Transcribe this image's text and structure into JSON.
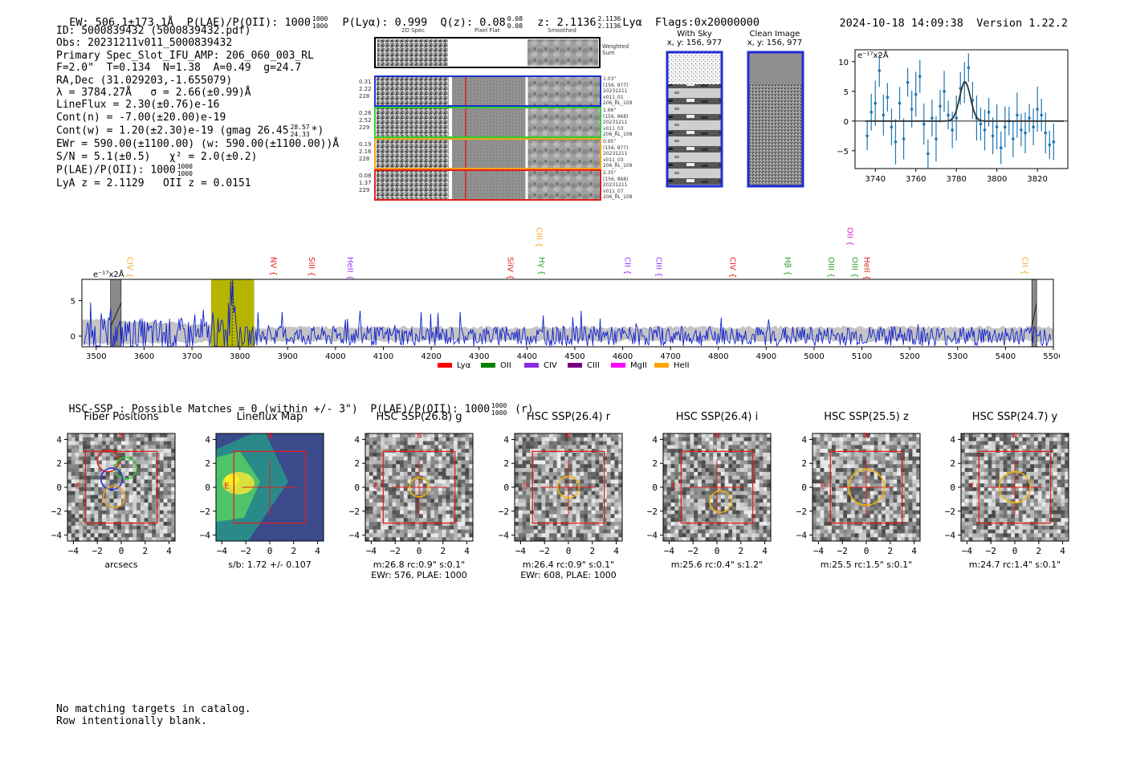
{
  "header": {
    "ew": "EW: 506.1±173.1Å",
    "plae_label": "P(LAE)/P(OII): 1000",
    "plae_hi": "1000",
    "plae_lo": "1000",
    "plya": "P(Lyα): 0.999",
    "qz": "Q(z): 0.08",
    "qz_hi": "0.08",
    "qz_lo": "0.08",
    "z": "z: 2.1136",
    "z_hi": "2.1136",
    "z_lo": "2.1136",
    "z_line": "Lyα",
    "flags": "Flags:0x20000000",
    "timestamp": "2024-10-18 14:09:38",
    "version": "Version 1.22.2"
  },
  "info": {
    "id": "ID: 5000839432 (5000839432.pdf)",
    "obs": "Obs: 20231211v011_5000839432",
    "primary": "Primary Spec_Slot_IFU_AMP: 206_060_003_RL",
    "params": "F=2.0\"  T=0.134  N=1.38  A=0.49  g=24.7",
    "radec": "RA,Dec (31.029203,-1.655079)",
    "lambda": "λ = 3784.27Å   σ = 2.66(±0.99)Å",
    "lineflux": "LineFlux = 2.30(±0.76)e-16",
    "contn": "Cont(n) = -7.00(±20.00)e-19",
    "contw": "Cont(w) = 1.20(±2.30)e-19 (gmag 26.45",
    "contw_hi": "28.57",
    "contw_lo": "24.33",
    "contw_tail": "*)",
    "ewr": "EWr = 590.00(±1100.00) (w: 590.00(±1100.00))Å",
    "sn": "S/N = 5.1(±0.5)   χ² = 2.0(±0.2)",
    "plae": "P(LAE)/P(OII): 1000",
    "plae_hi": "1000",
    "plae_lo": "1000",
    "lya": "LyA z = 2.1129   OII z = 0.0151"
  },
  "cutouts": {
    "col_2d": "2D Spec",
    "col_flat": "Pixel Flat",
    "col_smooth": "Smoothed",
    "weighted": "Weighted Sum",
    "rows": [
      {
        "w1": "0.31",
        "w2": "2.22",
        "w3": "228",
        "color": "#1f2fd0",
        "info": [
          "1.03\"",
          "(156, 977)",
          "20231211",
          "v011_01",
          "206_RL_109"
        ]
      },
      {
        "w1": "0.26",
        "w2": "2.52",
        "w3": "229",
        "color": "#2ed12e",
        "info": [
          "1.66\"",
          "(156, 968)",
          "20231211",
          "v011_03",
          "206_RL_108"
        ]
      },
      {
        "w1": "0.19",
        "w2": "2.16",
        "w3": "228",
        "color": "#f4a11a",
        "info": [
          "0.95\"",
          "(156, 977)",
          "20231211",
          "v011_03",
          "206_RL_109"
        ]
      },
      {
        "w1": "0.08",
        "w2": "1.37",
        "w3": "229",
        "color": "#e0201a",
        "info": [
          "2.35\"",
          "(156, 968)",
          "20231211",
          "v011_07",
          "206_RL_108"
        ]
      }
    ]
  },
  "sky": {
    "with_sky": "With Sky",
    "with_sky_xy": "x, y: 156, 977",
    "clean": "Clean Image",
    "clean_xy": "x, y: 156, 977"
  },
  "chart_data": [
    {
      "type": "scatter",
      "title": "",
      "ylabel": "e⁻¹⁷x2Å",
      "xlim": [
        3730,
        3835
      ],
      "ylim": [
        -8,
        12
      ],
      "xticks": [
        3740,
        3760,
        3780,
        3800,
        3820
      ],
      "yticks": [
        10,
        5,
        0,
        -5
      ],
      "x": [
        3736,
        3738,
        3740,
        3742,
        3744,
        3746,
        3748,
        3750,
        3752,
        3754,
        3756,
        3758,
        3760,
        3762,
        3764,
        3766,
        3768,
        3770,
        3772,
        3774,
        3776,
        3778,
        3780,
        3782,
        3784,
        3786,
        3788,
        3790,
        3792,
        3794,
        3796,
        3798,
        3800,
        3802,
        3804,
        3806,
        3808,
        3810,
        3812,
        3814,
        3816,
        3818,
        3820,
        3822,
        3824,
        3826,
        3828
      ],
      "y": [
        -2.5,
        1.5,
        3.0,
        8.5,
        1.0,
        4.0,
        -1.0,
        -3.5,
        3.0,
        -3.0,
        6.5,
        2.0,
        4.5,
        7.5,
        -0.5,
        -5.5,
        0.5,
        -3.0,
        2.5,
        5.0,
        1.0,
        -1.5,
        0.5,
        5.5,
        6.5,
        9.0,
        3.5,
        0.5,
        -0.5,
        -1.5,
        1.5,
        -2.5,
        -1.0,
        -4.5,
        -1.0,
        0.0,
        -3.0,
        1.0,
        -1.5,
        -2.0,
        0.5,
        -1.0,
        2.0,
        1.0,
        -2.0,
        -4.0,
        -3.5
      ],
      "fit": {
        "center": 3784.27,
        "sigma": 2.66,
        "amplitude": 6.6
      }
    },
    {
      "type": "line",
      "ylabel": "e⁻¹⁷x2Å",
      "xlim": [
        3470,
        5500
      ],
      "ylim": [
        -1.5,
        8
      ],
      "xticks": [
        3500,
        3600,
        3700,
        3800,
        3900,
        4000,
        4100,
        4200,
        4300,
        4400,
        4500,
        4600,
        4700,
        4800,
        4900,
        5000,
        5100,
        5200,
        5300,
        5400,
        5500
      ],
      "yticks": [
        5,
        0
      ],
      "highlight_range": [
        3740,
        3830
      ],
      "masked_ranges": [
        [
          3530,
          3552
        ],
        [
          5455,
          5465
        ]
      ],
      "emission_lines": [
        {
          "label": "CIV",
          "x": 3560,
          "color": "#f5a623",
          "row": 1
        },
        {
          "label": "NV",
          "x": 3860,
          "color": "#e0201a",
          "row": 1
        },
        {
          "label": "SiII",
          "x": 3940,
          "color": "#e0201a",
          "row": 1
        },
        {
          "label": "HeII",
          "x": 4020,
          "color": "#9b30ff",
          "row": 1
        },
        {
          "label": "SiIV",
          "x": 4355,
          "color": "#e0201a",
          "row": 1
        },
        {
          "label": "CIII",
          "x": 4415,
          "color": "#f5a623",
          "row": 0
        },
        {
          "label": "Hγ",
          "x": 4420,
          "color": "#2a9d2a",
          "row": 1
        },
        {
          "label": "CII",
          "x": 4600,
          "color": "#9b30ff",
          "row": 1
        },
        {
          "label": "CIII",
          "x": 4665,
          "color": "#9b30ff",
          "row": 1
        },
        {
          "label": "CIV",
          "x": 4820,
          "color": "#e0201a",
          "row": 1
        },
        {
          "label": "Hβ",
          "x": 4935,
          "color": "#2a9d2a",
          "row": 1
        },
        {
          "label": "OII",
          "x": 5065,
          "color": "#e020e0",
          "row": 0
        },
        {
          "label": "OIII",
          "x": 5025,
          "color": "#2a9d2a",
          "row": 1
        },
        {
          "label": "OIII",
          "x": 5075,
          "color": "#2a9d2a",
          "row": 1
        },
        {
          "label": "HeII",
          "x": 5100,
          "color": "#e0201a",
          "row": 1
        },
        {
          "label": "CII",
          "x": 5430,
          "color": "#f5a623",
          "row": 1
        }
      ],
      "legend": [
        {
          "label": "Lyα",
          "color": "#ff0000"
        },
        {
          "label": "OII",
          "color": "#008000"
        },
        {
          "label": "CIV",
          "color": "#8a2be2"
        },
        {
          "label": "CIII",
          "color": "#7b0080"
        },
        {
          "label": "MgII",
          "color": "#ff00ff"
        },
        {
          "label": "HeII",
          "color": "#ffa500"
        }
      ]
    }
  ],
  "hsc": {
    "summary": "HSC-SSP : Possible Matches = 0 (within +/- 3\")  P(LAE)/P(OII): 1000",
    "summary_hi": "1000",
    "summary_lo": "1000",
    "summary_tail": "(r)",
    "panels": [
      {
        "title": "Fiber Positions",
        "foot1": "arcsecs",
        "foot2": ""
      },
      {
        "title": "Lineflux Map",
        "foot1": "s/b: 1.72 +/- 0.107",
        "foot2": ""
      },
      {
        "title": "HSC SSP(26.8) g",
        "foot1": "m:26.8 rc:0.9\"  s:0.1\"",
        "foot2": "EWr: 576, PLAE: 1000"
      },
      {
        "title": "HSC SSP(26.4) r",
        "foot1": "m:26.4 rc:0.9\"  s:0.1\"",
        "foot2": "EWr: 608, PLAE: 1000"
      },
      {
        "title": "HSC SSP(26.4) i",
        "foot1": "m:25.6  rc:0.4\"  s:1.2\"",
        "foot2": ""
      },
      {
        "title": "HSC SSP(25.5) z",
        "foot1": "m:25.5 rc:1.5\"  s:0.1\"",
        "foot2": ""
      },
      {
        "title": "HSC SSP(24.7) y",
        "foot1": "m:24.7 rc:1.4\"  s:0.1\"",
        "foot2": ""
      }
    ],
    "ticks": [
      "4",
      "2",
      "0",
      "−2",
      "−4"
    ],
    "xticks": [
      "−4",
      "−2",
      "0",
      "2",
      "4"
    ],
    "north": "N",
    "east": "E"
  },
  "footer": {
    "line1": "No matching targets in catalog.",
    "line2": "Row intentionally blank."
  }
}
